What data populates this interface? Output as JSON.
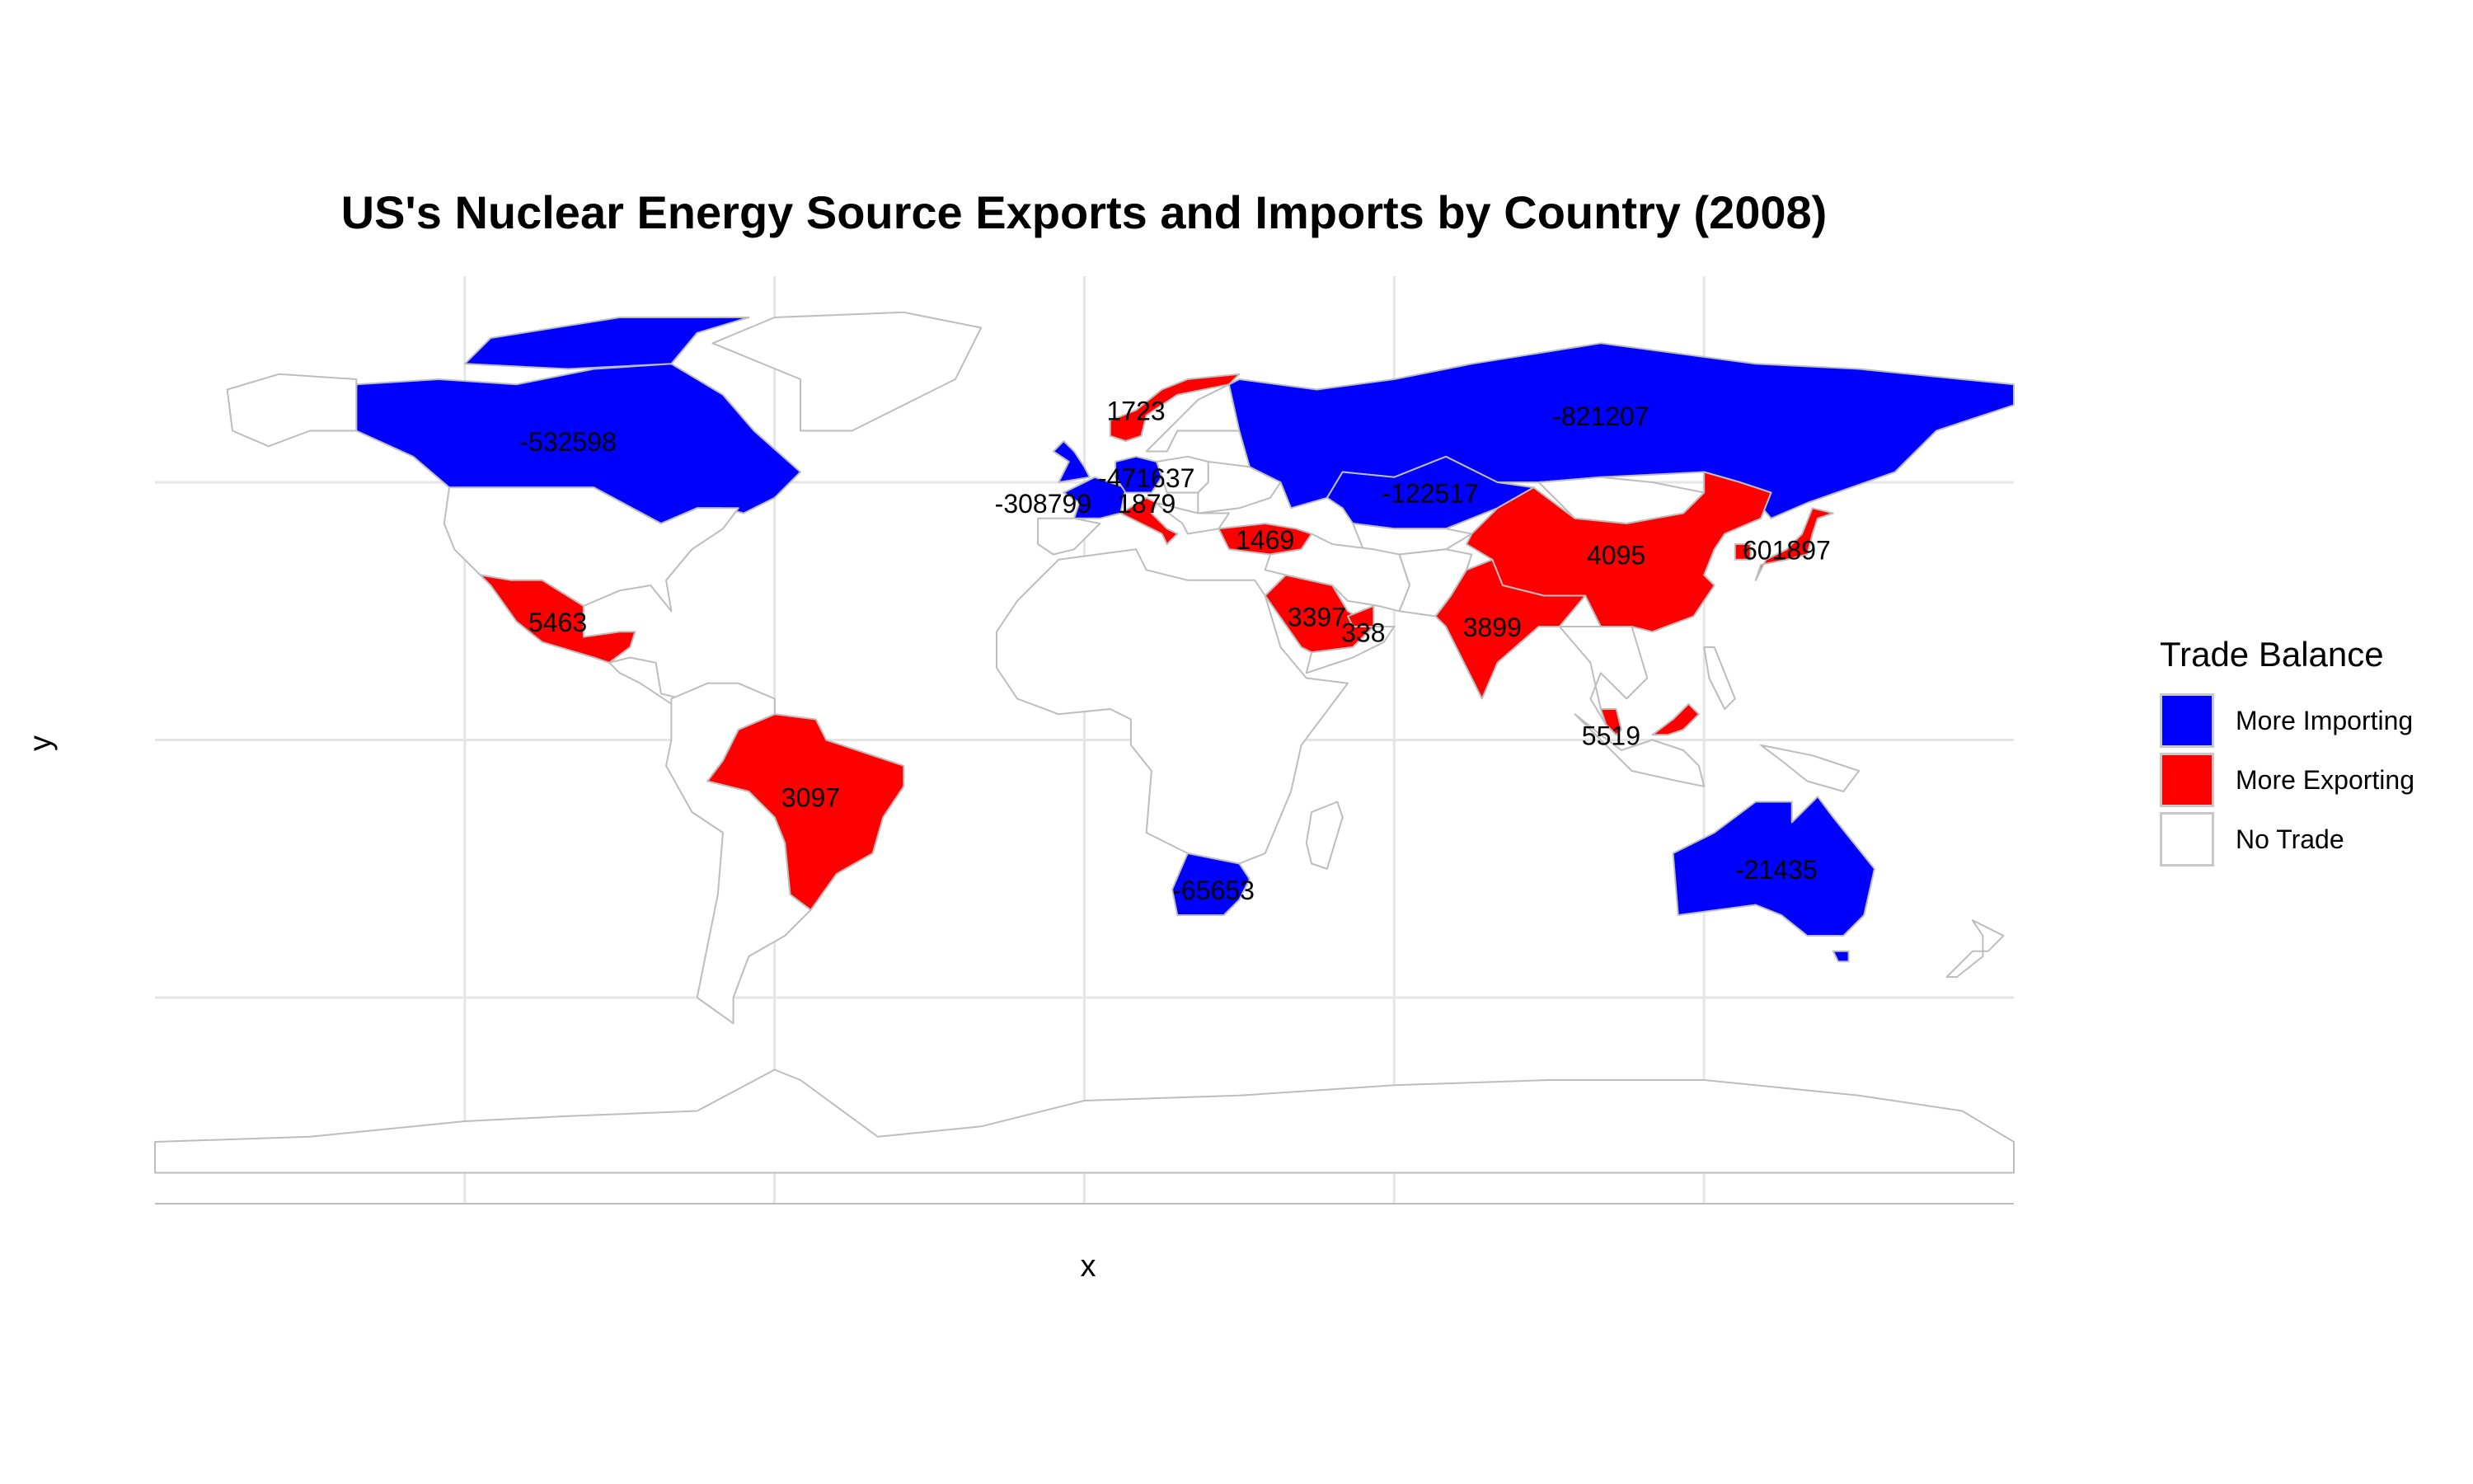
{
  "title": "US's Nuclear Energy Source Exports and Imports by Country (2008)",
  "xlabel": "x",
  "ylabel": "y",
  "legend": {
    "title": "Trade Balance",
    "items": [
      {
        "label": "More Importing",
        "color": "#0000ff"
      },
      {
        "label": "More Exporting",
        "color": "#ff0000"
      },
      {
        "label": "No Trade",
        "color": "#ffffff"
      }
    ]
  },
  "colors": {
    "importing": "#0000ff",
    "exporting": "#ff0000",
    "no_trade": "#ffffff",
    "border": "#bdbdbd",
    "grid": "#e5e5e5"
  },
  "chart_data": {
    "type": "choropleth map",
    "title": "US's Nuclear Energy Source Exports and Imports by Country (2008)",
    "xlabel": "x",
    "ylabel": "y",
    "legend_position": "right",
    "grid": true,
    "labels": [
      {
        "text": "-532598",
        "lon": -100,
        "lat": 58,
        "category": "More Importing"
      },
      {
        "text": "-821207",
        "lon": 100,
        "lat": 63,
        "category": "More Importing"
      },
      {
        "text": "1723",
        "lon": 10,
        "lat": 64,
        "category": "More Exporting"
      },
      {
        "text": "-471637",
        "lon": 12,
        "lat": 51,
        "category": "More Importing"
      },
      {
        "text": "-308799",
        "lon": -8,
        "lat": 46,
        "category": "More Importing"
      },
      {
        "text": "1879",
        "lon": 12,
        "lat": 46,
        "category": "More Exporting"
      },
      {
        "text": "-122517",
        "lon": 67,
        "lat": 48,
        "category": "More Importing"
      },
      {
        "text": "1469",
        "lon": 35,
        "lat": 39,
        "category": "More Exporting"
      },
      {
        "text": "4095",
        "lon": 103,
        "lat": 36,
        "category": "More Exporting"
      },
      {
        "text": "601897",
        "lon": 136,
        "lat": 37,
        "category": "More Exporting"
      },
      {
        "text": "5463",
        "lon": -102,
        "lat": 23,
        "category": "More Exporting"
      },
      {
        "text": "3397",
        "lon": 45,
        "lat": 24,
        "category": "More Exporting"
      },
      {
        "text": "338",
        "lon": 54,
        "lat": 21,
        "category": "More Exporting"
      },
      {
        "text": "3899",
        "lon": 79,
        "lat": 22,
        "category": "More Exporting"
      },
      {
        "text": "5519",
        "lon": 102,
        "lat": 1,
        "category": "More Exporting"
      },
      {
        "text": "3097",
        "lon": -53,
        "lat": -11,
        "category": "More Exporting"
      },
      {
        "text": "-65653",
        "lon": 25,
        "lat": -29,
        "category": "More Importing"
      },
      {
        "text": "-21435",
        "lon": 134,
        "lat": -25,
        "category": "More Importing"
      }
    ]
  }
}
